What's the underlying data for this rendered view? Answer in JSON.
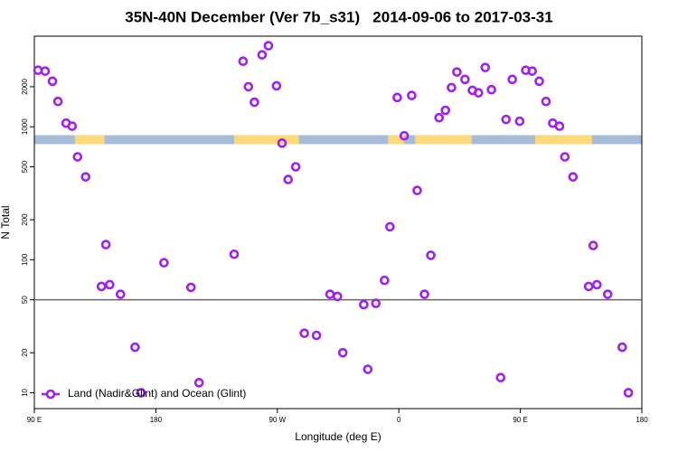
{
  "chart_data": {
    "type": "scatter",
    "title": "35N-40N December (Ver 7b_s31)   2014-09-06 to 2017-03-31",
    "x_label": "Longitude (deg E)",
    "y_label": "N Total",
    "log_y": true,
    "legend_position": "lower left",
    "xlim": [
      90,
      540
    ],
    "ylim": [
      7.6,
      4800
    ],
    "xticks": [
      {
        "value": 90,
        "label": "90 E"
      },
      180,
      {
        "value": 270,
        "label": "90 W"
      },
      {
        "value": 360,
        "label": "0"
      },
      {
        "value": 450,
        "label": "90 E"
      },
      {
        "value": 540,
        "label": "180"
      }
    ],
    "yticks": [
      10,
      20,
      50,
      100,
      200,
      500,
      1000,
      2000
    ],
    "reference_line": 50,
    "surface_band": {
      "value": 800,
      "ocean_color": "#a7bcd9",
      "land_color": "#fcd97a",
      "land_ranges": [
        [
          120,
          142
        ],
        [
          238,
          286
        ],
        [
          352,
          364
        ],
        [
          372,
          414
        ],
        [
          461,
          503
        ]
      ]
    },
    "series": [
      {
        "name": "Land (Nadir&Glint) and Ocean (Glint)",
        "color": "#a020f0",
        "x": [
          92.7,
          98,
          103.4,
          107.5,
          113.5,
          118,
          122,
          128,
          139.7,
          143,
          145.8,
          153.8,
          164.6,
          169,
          186,
          206,
          212,
          238,
          244.6,
          248.6,
          253,
          258.7,
          263.4,
          269.4,
          273.5,
          278,
          283.6,
          290,
          299,
          309,
          314.5,
          318.5,
          334,
          337,
          343,
          349.4,
          353.4,
          358.8,
          364,
          369.5,
          373.6,
          379,
          383.7,
          389.8,
          394.5,
          399,
          403,
          409,
          414.5,
          419,
          424,
          428.6,
          435.4,
          439.4,
          444,
          449.5,
          454,
          458.8,
          464,
          469,
          474,
          479,
          483,
          489,
          500.6,
          504,
          506.7,
          514.7,
          525.5,
          530
        ],
        "values": [
          2660,
          2620,
          2200,
          1550,
          1065,
          1010,
          594,
          420,
          63,
          130,
          65,
          55,
          22,
          10,
          95,
          62,
          11.9,
          110,
          3110,
          2000,
          1530,
          3475,
          4070,
          2030,
          753,
          401,
          500,
          28,
          27,
          55,
          53,
          20,
          46,
          15,
          47,
          70,
          177,
          1660,
          855,
          1720,
          332,
          55,
          108,
          1170,
          1330,
          1970,
          2580,
          2270,
          1880,
          1800,
          2790,
          1900,
          13,
          1135,
          2270,
          1100,
          2660,
          2620,
          2200,
          1550,
          1065,
          1010,
          594,
          420,
          63,
          128,
          65,
          55,
          22,
          10
        ]
      }
    ]
  }
}
